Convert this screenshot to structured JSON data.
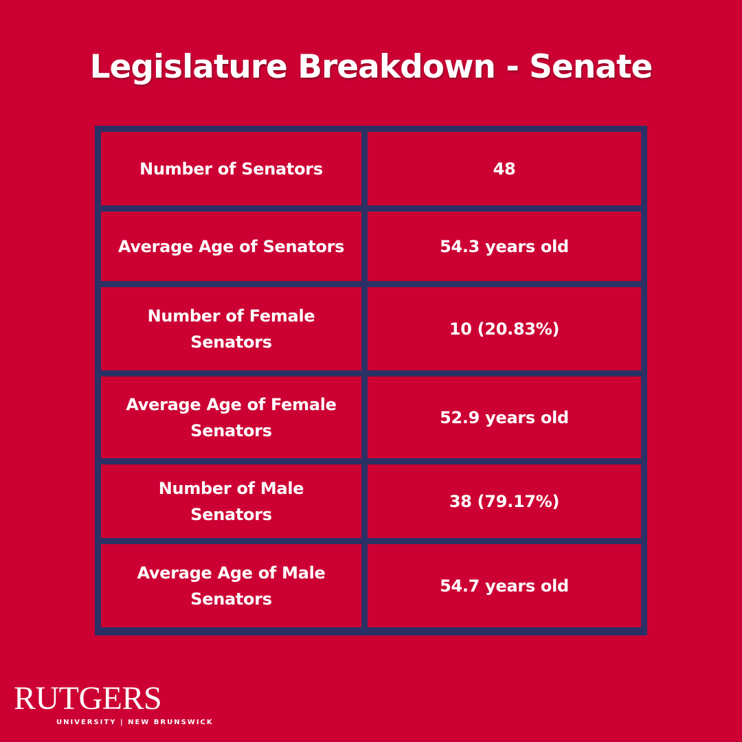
{
  "title": "Legislature Breakdown - Senate",
  "table": {
    "rows": [
      {
        "label": "Number of Senators",
        "value": "48"
      },
      {
        "label": "Average Age of Senators",
        "value": "54.3 years old"
      },
      {
        "label": "Number of Female Senators",
        "value": "10 (20.83%)"
      },
      {
        "label": "Average Age of Female Senators",
        "value": "52.9 years old"
      },
      {
        "label": "Number of Male Senators",
        "value": "38 (79.17%)"
      },
      {
        "label": "Average Age of Male Senators",
        "value": "54.7 years old"
      }
    ]
  },
  "logo": {
    "wordmark": "RUTGERS",
    "subtitle": "UNIVERSITY | NEW BRUNSWICK"
  },
  "colors": {
    "background": "#cc0033",
    "grid_border": "#2b3165",
    "text": "#ffffff"
  }
}
